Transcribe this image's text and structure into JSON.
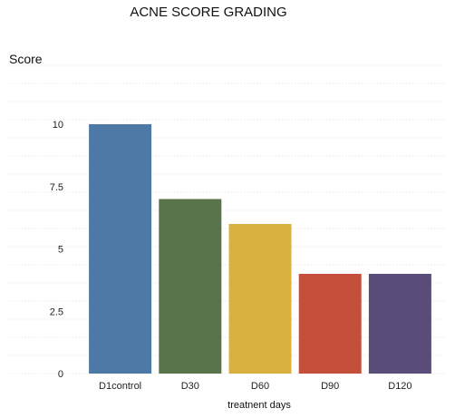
{
  "chart_data": {
    "type": "bar",
    "title": "ACNE SCORE GRADING",
    "xlabel": "treatnent days",
    "ylabel": "Score",
    "categories": [
      "D1control",
      "D30",
      "D60",
      "D90",
      "D120"
    ],
    "values": [
      10,
      7,
      6,
      4,
      4
    ],
    "ylim": [
      0,
      10
    ],
    "yticks": [
      0,
      2.5,
      5,
      7.5,
      10
    ],
    "ytick_labels": [
      "0",
      "2.5",
      "5",
      "7.5",
      "10"
    ],
    "grid": true,
    "colors": [
      "#4e79a7",
      "#59734a",
      "#d8b140",
      "#c4503b",
      "#5a4d7a"
    ]
  }
}
